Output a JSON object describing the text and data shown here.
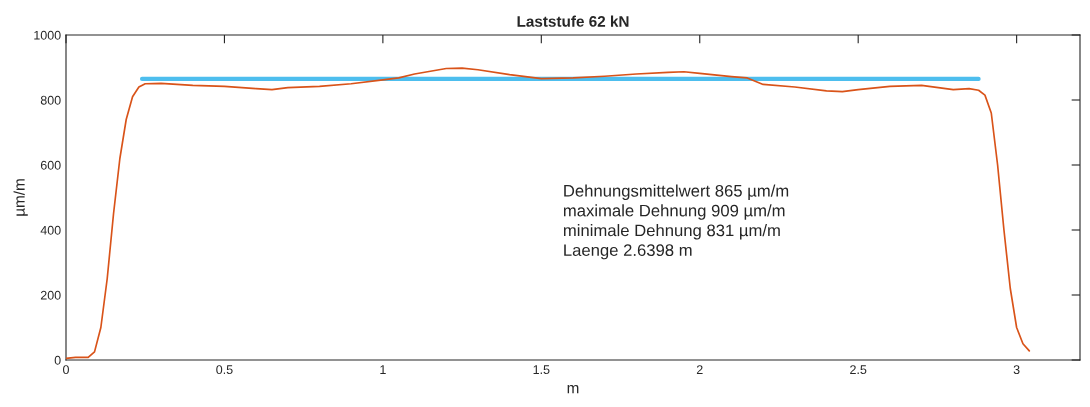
{
  "chart_data": {
    "type": "line",
    "title": "Laststufe 62 kN",
    "xlabel": "m",
    "ylabel": "µm/m",
    "xlim": [
      0,
      3.2
    ],
    "xticks": [
      0,
      0.5,
      1,
      1.5,
      2,
      2.5,
      3
    ],
    "ylim": [
      0,
      1000
    ],
    "yticks": [
      0,
      200,
      400,
      600,
      800,
      1000
    ],
    "grid": false,
    "series": [
      {
        "color": "#d95319",
        "x": [
          0,
          0.03,
          0.07,
          0.09,
          0.11,
          0.13,
          0.15,
          0.17,
          0.19,
          0.21,
          0.23,
          0.25,
          0.3,
          0.4,
          0.5,
          0.6,
          0.65,
          0.7,
          0.8,
          0.9,
          1.0,
          1.05,
          1.1,
          1.2,
          1.25,
          1.3,
          1.4,
          1.5,
          1.6,
          1.7,
          1.8,
          1.9,
          1.95,
          2.0,
          2.1,
          2.15,
          2.2,
          2.3,
          2.4,
          2.45,
          2.5,
          2.6,
          2.7,
          2.8,
          2.85,
          2.88,
          2.9,
          2.92,
          2.94,
          2.96,
          2.98,
          3.0,
          3.02,
          3.04
        ],
        "values": [
          5,
          8,
          8,
          25,
          100,
          250,
          450,
          620,
          740,
          810,
          840,
          850,
          851,
          845,
          842,
          835,
          832,
          838,
          842,
          850,
          862,
          868,
          880,
          897,
          898,
          893,
          878,
          866,
          868,
          873,
          880,
          885,
          887,
          882,
          872,
          868,
          848,
          840,
          828,
          826,
          832,
          842,
          845,
          832,
          835,
          830,
          815,
          760,
          600,
          400,
          220,
          100,
          50,
          28
        ]
      },
      {
        "color": "#4dbeee",
        "x": [
          0.24,
          2.88
        ],
        "values": [
          865,
          865
        ]
      }
    ],
    "annotations": [
      "Dehnungsmittelwert 865 µm/m",
      "maximale Dehnung 909 µm/m",
      "minimale Dehnung 831 µm/m",
      "Laenge 2.6398 m"
    ]
  }
}
